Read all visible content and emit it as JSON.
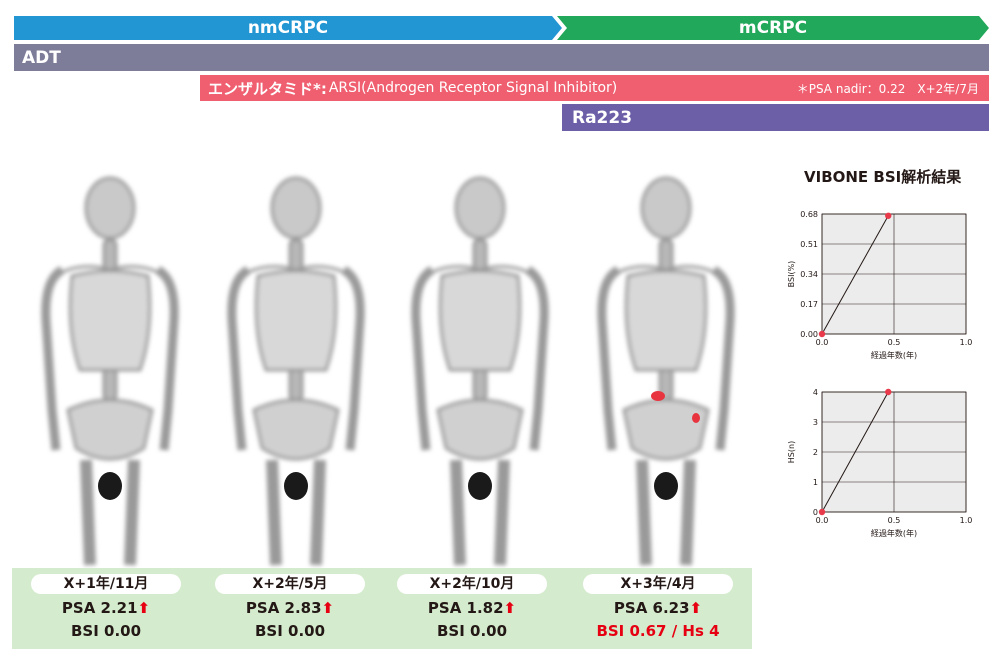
{
  "timeline": {
    "nmcrpc": "nmCRPC",
    "mcrpc": "mCRPC",
    "adt": "ADT",
    "enzalutamide": "エンザルタミド*:",
    "arsi": "ARSI(Androgen Receptor Signal  Inhibitor)",
    "nadir_note": "＊PSA nadir：0.22　X+2年/7月",
    "ra223": "Ra223"
  },
  "scans": [
    {
      "date": "X+1年/11月",
      "psa_label": "PSA 2.21",
      "bsi_label": "BSI 0.00",
      "arrow": "⬆"
    },
    {
      "date": "X+2年/5月",
      "psa_label": "PSA 2.83",
      "bsi_label": "BSI 0.00",
      "arrow": "⬆"
    },
    {
      "date": "X+2年/10月",
      "psa_label": "PSA 1.82",
      "bsi_label": "BSI 0.00",
      "arrow": "⬆"
    },
    {
      "date": "X+3年/4月",
      "psa_label": "PSA 6.23",
      "bsi_label": "BSI 0.67 / Hs 4",
      "arrow": "⬆"
    }
  ],
  "vibone_title": "VIBONE BSI解析結果",
  "colors": {
    "marker": "#e83a4b",
    "hotspot": "#e8343f",
    "accent_red": "#e60012"
  },
  "chart_data": [
    {
      "type": "line",
      "xlabel": "経過年数(年)",
      "ylabel": "BSI(%)",
      "xlim": [
        0,
        1.0
      ],
      "ylim": [
        0,
        0.68
      ],
      "xticks": [
        "0.0",
        "0.5",
        "1.0"
      ],
      "yticks": [
        "0.00",
        "0.17",
        "0.34",
        "0.51",
        "0.68"
      ],
      "grid": true,
      "series": [
        {
          "x": [
            0.0,
            0.46
          ],
          "y": [
            0.0,
            0.67
          ]
        }
      ]
    },
    {
      "type": "line",
      "xlabel": "経過年数(年)",
      "ylabel": "HS(n)",
      "xlim": [
        0,
        1.0
      ],
      "ylim": [
        0,
        4
      ],
      "xticks": [
        "0.0",
        "0.5",
        "1.0"
      ],
      "yticks": [
        "0",
        "1",
        "2",
        "3",
        "4"
      ],
      "grid": true,
      "series": [
        {
          "x": [
            0.0,
            0.46
          ],
          "y": [
            0,
            4
          ]
        }
      ]
    }
  ]
}
